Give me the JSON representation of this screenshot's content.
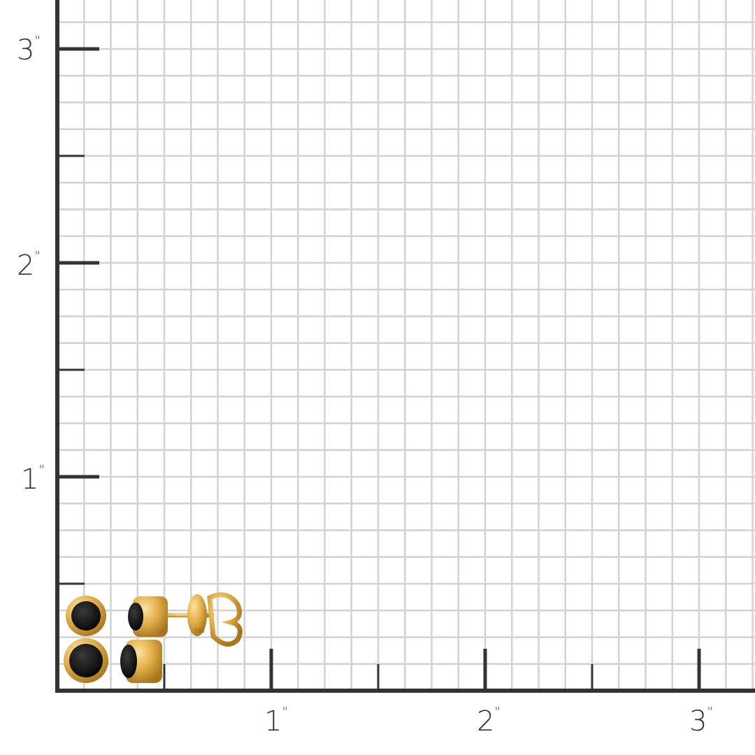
{
  "scale": {
    "unit_symbol": "\"",
    "grid_divisions_per_inch": 8,
    "x_labels": [
      "1",
      "2",
      "3"
    ],
    "y_labels": [
      "1",
      "2",
      "3"
    ],
    "grid_color": "#d2d2d2",
    "axis_color": "#333333"
  },
  "product": {
    "description_icon": "black-stone-bezel-stud-earrings",
    "metal_color": "#e3b04b",
    "stone_color": "#111111",
    "stamp": "585"
  }
}
